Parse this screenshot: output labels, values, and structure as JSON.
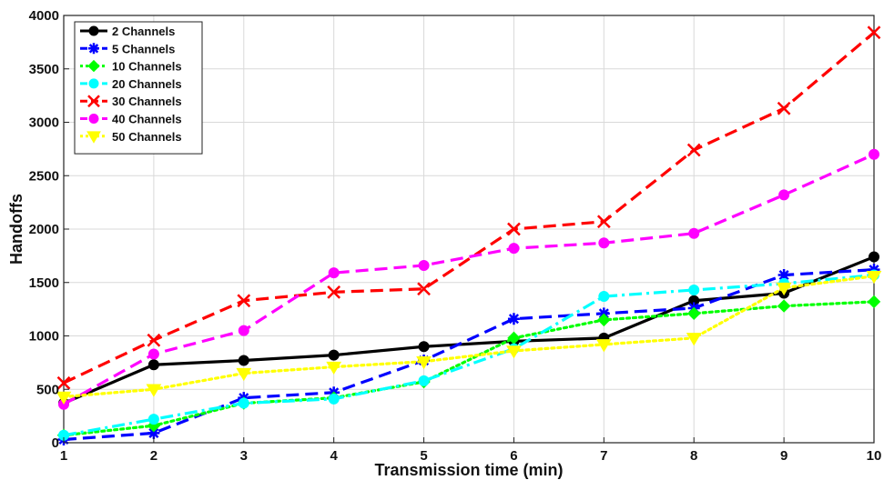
{
  "chart_data": {
    "type": "line",
    "title": "",
    "xlabel": "Transmission time (min)",
    "ylabel": "Handoffs",
    "x": [
      1,
      2,
      3,
      4,
      5,
      6,
      7,
      8,
      9,
      10
    ],
    "xlim": [
      1,
      10
    ],
    "ylim": [
      0,
      4000
    ],
    "xticks": [
      "1",
      "2",
      "3",
      "4",
      "5",
      "6",
      "7",
      "8",
      "9",
      "10"
    ],
    "yticks": [
      "0",
      "500",
      "1000",
      "1500",
      "2000",
      "2500",
      "3000",
      "3500",
      "4000"
    ],
    "grid": true,
    "legend_position": "top-left",
    "series": [
      {
        "name": "2 Channels",
        "color": "#000000",
        "dash": "solid",
        "marker": "circle",
        "values": [
          370,
          730,
          770,
          820,
          900,
          950,
          980,
          1330,
          1400,
          1740
        ]
      },
      {
        "name": "5 Channels",
        "color": "#0000ff",
        "dash": "dashed",
        "marker": "asterisk",
        "values": [
          30,
          90,
          420,
          470,
          770,
          1160,
          1210,
          1260,
          1570,
          1620
        ]
      },
      {
        "name": "10 Channels",
        "color": "#00ff00",
        "dash": "dotted",
        "marker": "diamond",
        "values": [
          70,
          160,
          370,
          420,
          570,
          980,
          1150,
          1210,
          1280,
          1320
        ]
      },
      {
        "name": "20 Channels",
        "color": "#00ffff",
        "dash": "dashdot",
        "marker": "circle",
        "values": [
          70,
          220,
          370,
          410,
          580,
          880,
          1370,
          1430,
          1490,
          1570
        ]
      },
      {
        "name": "30 Channels",
        "color": "#ff0000",
        "dash": "dashed",
        "marker": "x",
        "values": [
          560,
          960,
          1330,
          1410,
          1440,
          2000,
          2070,
          2740,
          3130,
          3840
        ]
      },
      {
        "name": "40 Channels",
        "color": "#ff00ff",
        "dash": "dashed",
        "marker": "circle",
        "values": [
          360,
          830,
          1050,
          1590,
          1660,
          1820,
          1870,
          1960,
          2320,
          2700
        ]
      },
      {
        "name": "50 Channels",
        "color": "#ffff00",
        "dash": "dotted",
        "marker": "triangle-down",
        "values": [
          430,
          500,
          650,
          710,
          760,
          860,
          920,
          980,
          1450,
          1560
        ]
      }
    ]
  }
}
